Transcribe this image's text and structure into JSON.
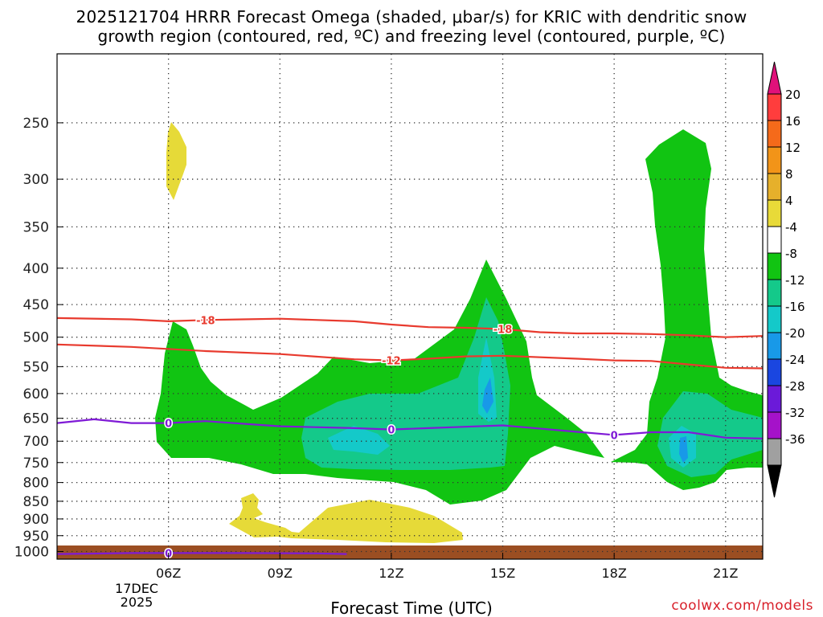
{
  "chart_data": {
    "type": "contour",
    "title_line1": "2025121704 HRRR Forecast Omega (shaded, μbar/s) for KRIC with dendritic snow",
    "title_line2": "growth region (contoured, red, ºC) and freezing level (contoured, purple, ºC)",
    "xlabel": "Forecast Time (UTC)",
    "x_ticks": [
      "06Z",
      "09Z",
      "12Z",
      "15Z",
      "18Z",
      "21Z"
    ],
    "x_hours": [
      6,
      9,
      12,
      15,
      18,
      21
    ],
    "x_range": [
      3,
      22
    ],
    "date_label": [
      "17DEC",
      "2025"
    ],
    "y_ticks": [
      250,
      300,
      350,
      400,
      450,
      500,
      550,
      600,
      650,
      700,
      750,
      800,
      850,
      900,
      950,
      1000
    ],
    "y_range": [
      200,
      1025
    ],
    "y_scale": "log",
    "grid": "dotted",
    "colorbar": {
      "labels": [
        "20",
        "16",
        "12",
        "8",
        "4",
        "-4",
        "-8",
        "-12",
        "-16",
        "-20",
        "-24",
        "-28",
        "-32",
        "-36"
      ],
      "colors": [
        "#ff3d3d",
        "#f56a1a",
        "#f29418",
        "#e6b02b",
        "#e8da38",
        "#ffffff",
        "#11c412",
        "#14c98a",
        "#14c9c9",
        "#1899e8",
        "#1a46e0",
        "#6b1ad9",
        "#a512c9",
        "#a0a0a0"
      ],
      "top_arrow_color": "#e0117a",
      "bottom_arrow_color": "#000000"
    },
    "contours": [
      {
        "label": "-18",
        "color": "#e83a2e",
        "points": [
          [
            3,
            470
          ],
          [
            5,
            472
          ],
          [
            6,
            475
          ],
          [
            7,
            473
          ],
          [
            8,
            472
          ],
          [
            9,
            471
          ],
          [
            11,
            475
          ],
          [
            12,
            480
          ],
          [
            13,
            484
          ],
          [
            14,
            485
          ],
          [
            15,
            487
          ],
          [
            16,
            492
          ],
          [
            17,
            494
          ],
          [
            18,
            494
          ],
          [
            19,
            495
          ],
          [
            20,
            497
          ],
          [
            21,
            500
          ],
          [
            22,
            498
          ]
        ],
        "label_at": [
          [
            7,
            473
          ],
          [
            15,
            487
          ]
        ]
      },
      {
        "label": "-12",
        "color": "#e83a2e",
        "points": [
          [
            3,
            512
          ],
          [
            5,
            516
          ],
          [
            7,
            523
          ],
          [
            9,
            528
          ],
          [
            11,
            537
          ],
          [
            12,
            539
          ],
          [
            13,
            536
          ],
          [
            14,
            532
          ],
          [
            15,
            531
          ],
          [
            17,
            536
          ],
          [
            18,
            539
          ],
          [
            19,
            540
          ],
          [
            20,
            546
          ],
          [
            21,
            552
          ],
          [
            22,
            553
          ]
        ],
        "label_at": [
          [
            12,
            539
          ]
        ]
      },
      {
        "label": "0",
        "color": "#7f1ad6",
        "points": [
          [
            3,
            660
          ],
          [
            4,
            652
          ],
          [
            5,
            660
          ],
          [
            6,
            660
          ],
          [
            7,
            656
          ],
          [
            9,
            667
          ],
          [
            11,
            671
          ],
          [
            12,
            674
          ],
          [
            13,
            671
          ],
          [
            14,
            668
          ],
          [
            15,
            665
          ],
          [
            17,
            679
          ],
          [
            18,
            686
          ],
          [
            19,
            680
          ],
          [
            20,
            680
          ],
          [
            21,
            692
          ],
          [
            22,
            694
          ]
        ],
        "label_at": [
          [
            6,
            660
          ],
          [
            12,
            674
          ],
          [
            18,
            686
          ]
        ]
      },
      {
        "label": "0",
        "color": "#7f1ad6",
        "points": [
          [
            3,
            1008
          ],
          [
            5,
            1005
          ],
          [
            6,
            1005
          ],
          [
            8,
            1005
          ],
          [
            10,
            1006
          ],
          [
            10.8,
            1008
          ]
        ],
        "label_at": [
          [
            6,
            1005
          ]
        ]
      }
    ]
  }
}
